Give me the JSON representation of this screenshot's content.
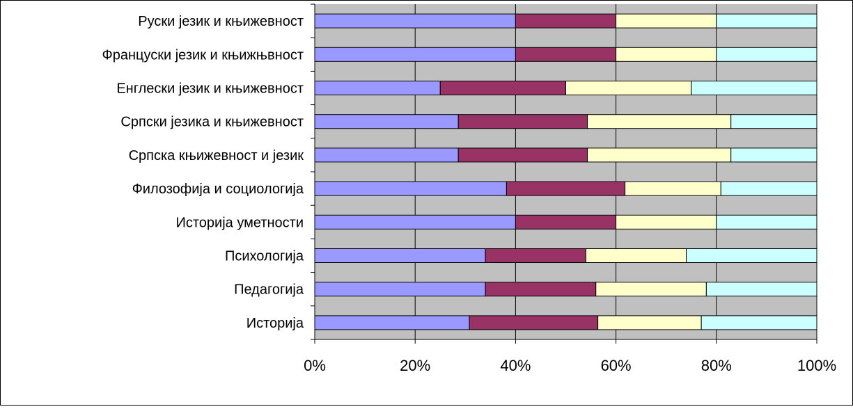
{
  "chart_data": {
    "type": "bar",
    "orientation": "horizontal",
    "stacked": "percent",
    "categories": [
      "Руски језик и књижевност",
      "Француски језик и књижњвност",
      "Енглески језик и књижевност",
      "Српски језика и књижевност",
      "Српска књижевност и језик",
      "Филозофија и социологија",
      "Историја уметности",
      "Психологија",
      "Педагогија",
      "Историја"
    ],
    "series": [
      {
        "color": "#9999ff",
        "values": [
          40,
          40,
          25,
          28.6,
          28.6,
          38.2,
          40,
          34,
          34,
          30.8
        ]
      },
      {
        "color": "#993366",
        "values": [
          20,
          20,
          25,
          25.7,
          25.7,
          23.6,
          20,
          20,
          22,
          25.6
        ]
      },
      {
        "color": "#ffffcc",
        "values": [
          20,
          20,
          25,
          28.6,
          28.6,
          19.1,
          20,
          20,
          22,
          20.6
        ]
      },
      {
        "color": "#ccffff",
        "values": [
          20,
          20,
          25,
          17.1,
          17.1,
          19.1,
          20,
          26,
          22,
          23
        ]
      }
    ],
    "xlim": [
      0,
      100
    ],
    "xticks": [
      "0%",
      "20%",
      "40%",
      "60%",
      "80%",
      "100%"
    ],
    "grid": true,
    "legend": "none",
    "plot_background": "#c0c0c0"
  }
}
